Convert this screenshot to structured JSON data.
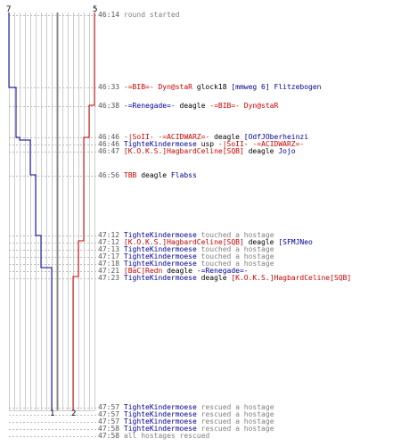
{
  "colors": {
    "t_team": "#cc0000",
    "ct_team": "#000099",
    "time": "#555555",
    "action": "#808080",
    "grid": "#cccccc",
    "grid_dark": "#888888"
  },
  "counters": {
    "ct_start": "7",
    "t_start": "5",
    "ct_end": "1",
    "t_end": "2"
  },
  "events": [
    {
      "time": "46:14",
      "parts": [
        {
          "text": "round started",
          "c": "gray"
        }
      ]
    },
    {
      "time": "46:33",
      "parts": [
        {
          "text": "-=BIB=- Dyn@staR",
          "c": "red"
        },
        {
          "text": " glock18 ",
          "c": "black"
        },
        {
          "text": "[mmweg 6] Flitzebogen",
          "c": "blue"
        }
      ]
    },
    {
      "time": "46:38",
      "parts": [
        {
          "text": "-=Renegade=-",
          "c": "blue"
        },
        {
          "text": " deagle ",
          "c": "black"
        },
        {
          "text": "-=BIB=- Dyn@staR",
          "c": "red"
        }
      ]
    },
    {
      "time": "46:46",
      "parts": [
        {
          "text": "-|SoII- -=ACIDWARZ=-",
          "c": "red"
        },
        {
          "text": " deagle ",
          "c": "black"
        },
        {
          "text": "[OdfJOberheinzi",
          "c": "blue"
        }
      ]
    },
    {
      "time": "46:46",
      "parts": [
        {
          "text": "TighteKindermoese",
          "c": "blue"
        },
        {
          "text": " usp ",
          "c": "black"
        },
        {
          "text": "-|SoII- -=ACIDWARZ=-",
          "c": "red"
        }
      ]
    },
    {
      "time": "46:47",
      "parts": [
        {
          "text": "[K.O.K.S.]HagbardCeline[SQB]",
          "c": "red"
        },
        {
          "text": " deagle ",
          "c": "black"
        },
        {
          "text": "Jojo",
          "c": "blue"
        }
      ]
    },
    {
      "time": "46:56",
      "parts": [
        {
          "text": "TBB",
          "c": "red"
        },
        {
          "text": " deagle ",
          "c": "black"
        },
        {
          "text": "Flabss",
          "c": "blue"
        }
      ]
    },
    {
      "time": "47:12",
      "parts": [
        {
          "text": "TighteKindermoese",
          "c": "blue"
        },
        {
          "text": " touched a hostage",
          "c": "gray"
        }
      ]
    },
    {
      "time": "47:12",
      "parts": [
        {
          "text": "[K.O.K.S.]HagbardCeline[SQB]",
          "c": "red"
        },
        {
          "text": " deagle ",
          "c": "black"
        },
        {
          "text": "[SFMJNeo",
          "c": "blue"
        }
      ]
    },
    {
      "time": "47:13",
      "parts": [
        {
          "text": "TighteKindermoese",
          "c": "blue"
        },
        {
          "text": " touched a hostage",
          "c": "gray"
        }
      ]
    },
    {
      "time": "47:17",
      "parts": [
        {
          "text": "TighteKindermoese",
          "c": "blue"
        },
        {
          "text": " touched a hostage",
          "c": "gray"
        }
      ]
    },
    {
      "time": "47:18",
      "parts": [
        {
          "text": "TighteKindermoese",
          "c": "blue"
        },
        {
          "text": " touched a hostage",
          "c": "gray"
        }
      ]
    },
    {
      "time": "47:21",
      "parts": [
        {
          "text": "[BaC]Redn",
          "c": "red"
        },
        {
          "text": " deagle ",
          "c": "black"
        },
        {
          "text": "-=Renegade=-",
          "c": "blue"
        }
      ]
    },
    {
      "time": "47:23",
      "parts": [
        {
          "text": "TighteKindermoese",
          "c": "blue"
        },
        {
          "text": " deagle ",
          "c": "black"
        },
        {
          "text": "[K.O.K.S.]HagbardCeline[SQB]",
          "c": "red"
        }
      ]
    },
    {
      "time": "47:57",
      "parts": [
        {
          "text": "TighteKindermoese",
          "c": "blue"
        },
        {
          "text": " rescued a hostage",
          "c": "gray"
        }
      ]
    },
    {
      "time": "47:57",
      "parts": [
        {
          "text": "TighteKindermoese",
          "c": "blue"
        },
        {
          "text": " rescued a hostage",
          "c": "gray"
        }
      ]
    },
    {
      "time": "47:57",
      "parts": [
        {
          "text": "TighteKindermoese",
          "c": "blue"
        },
        {
          "text": " rescued a hostage",
          "c": "gray"
        }
      ]
    },
    {
      "time": "47:58",
      "parts": [
        {
          "text": "TighteKindermoese",
          "c": "blue"
        },
        {
          "text": " rescued a hostage",
          "c": "gray"
        }
      ]
    },
    {
      "time": "47:58",
      "parts": [
        {
          "text": "all hostages rescued",
          "c": "gray"
        }
      ]
    }
  ]
}
